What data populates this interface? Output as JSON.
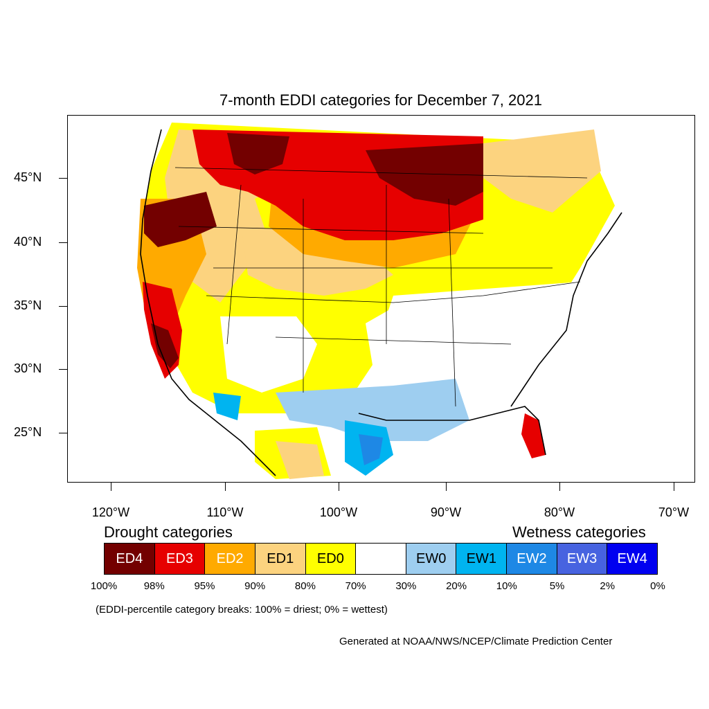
{
  "title": "7-month EDDI categories for December 7, 2021",
  "lat_labels": [
    "45°N",
    "40°N",
    "35°N",
    "30°N",
    "25°N"
  ],
  "lon_labels": [
    "120°W",
    "110°W",
    "100°W",
    "90°W",
    "80°W",
    "70°W"
  ],
  "legend": {
    "drought_heading": "Drought categories",
    "wetness_heading": "Wetness categories",
    "categories": [
      {
        "label": "ED4",
        "color": "#730000",
        "text_color": "#ffffff"
      },
      {
        "label": "ED3",
        "color": "#e60000",
        "text_color": "#ffffff"
      },
      {
        "label": "ED2",
        "color": "#ffaa00",
        "text_color": "#ffffff"
      },
      {
        "label": "ED1",
        "color": "#fcd37f",
        "text_color": "#000000"
      },
      {
        "label": "ED0",
        "color": "#ffff00",
        "text_color": "#000000"
      },
      {
        "label": "",
        "color": "#ffffff",
        "text_color": "#000000"
      },
      {
        "label": "EW0",
        "color": "#9ecef0",
        "text_color": "#000000"
      },
      {
        "label": "EW1",
        "color": "#00b4f0",
        "text_color": "#000000"
      },
      {
        "label": "EW2",
        "color": "#1e88e5",
        "text_color": "#ffffff"
      },
      {
        "label": "EW3",
        "color": "#4763e0",
        "text_color": "#ffffff"
      },
      {
        "label": "EW4",
        "color": "#0000f0",
        "text_color": "#ffffff"
      }
    ],
    "breaks": [
      "100%",
      "98%",
      "95%",
      "90%",
      "80%",
      "70%",
      "30%",
      "20%",
      "10%",
      "5%",
      "2%",
      "0%"
    ]
  },
  "note": "(EDDI-percentile category breaks: 100% = driest; 0% = wettest)",
  "credit": "Generated at NOAA/NWS/NCEP/Climate Prediction Center"
}
